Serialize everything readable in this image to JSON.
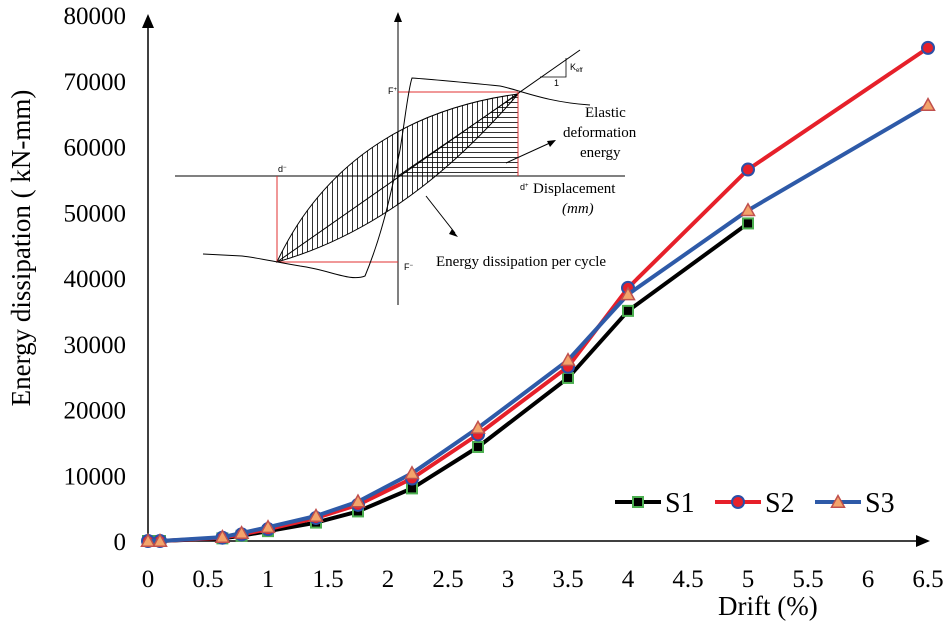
{
  "chart_data": {
    "type": "line",
    "title": "",
    "xlabel": "Drift (%)",
    "ylabel": "Energy dissipation ( kN-mm)",
    "xlim": [
      0,
      6.5
    ],
    "ylim": [
      0,
      80000
    ],
    "x_ticks": [
      "0",
      "0.5",
      "1",
      "1.5",
      "2",
      "2.5",
      "3",
      "3.5",
      "4",
      "4.5",
      "5",
      "5.5",
      "6",
      "6.5"
    ],
    "y_ticks": [
      "0",
      "10000",
      "20000",
      "30000",
      "40000",
      "50000",
      "60000",
      "70000",
      "80000"
    ],
    "legend_position": "bottom-right",
    "series": [
      {
        "name": "S1",
        "color": "#000000",
        "marker": "square",
        "marker_fill": "#000000",
        "marker_edge": "#4caf50",
        "x": [
          0,
          0.1,
          0.62,
          0.78,
          1.0,
          1.4,
          1.75,
          2.2,
          2.75,
          3.5,
          4.0,
          5.0
        ],
        "y": [
          0,
          0,
          400,
          800,
          1500,
          2800,
          4500,
          8000,
          14300,
          24800,
          35000,
          48300
        ]
      },
      {
        "name": "S2",
        "color": "#e6202a",
        "marker": "circle",
        "marker_fill": "#e6202a",
        "marker_edge": "#2b4fa8",
        "x": [
          0,
          0.1,
          0.62,
          0.78,
          1.0,
          1.4,
          1.75,
          2.2,
          2.75,
          3.5,
          4.0,
          5.0,
          6.5
        ],
        "y": [
          0,
          0,
          500,
          1000,
          1800,
          3500,
          5500,
          9500,
          16200,
          26500,
          38500,
          56500,
          75000
        ]
      },
      {
        "name": "S3",
        "color": "#2e5aa8",
        "marker": "triangle",
        "marker_fill": "#f3a46b",
        "marker_edge": "#c0504d",
        "x": [
          0,
          0.1,
          0.62,
          0.78,
          1.0,
          1.4,
          1.75,
          2.2,
          2.75,
          3.5,
          4.0,
          5.0,
          6.5
        ],
        "y": [
          0,
          0,
          600,
          1200,
          2100,
          3800,
          6000,
          10300,
          17200,
          27500,
          37500,
          50300,
          66300
        ]
      }
    ]
  },
  "inset": {
    "k_eff": "K",
    "k_eff_sub": "eff",
    "k_one": "1",
    "f_plus": "F",
    "f_minus": "F",
    "d_minus": "d",
    "d_plus": "d",
    "elastic_line1": "Elastic",
    "elastic_line2": "deformation",
    "elastic_line3": "energy",
    "displacement_label": "Displacement",
    "displacement_unit": "(mm)",
    "dissipation_label": "Energy dissipation per cycle"
  }
}
